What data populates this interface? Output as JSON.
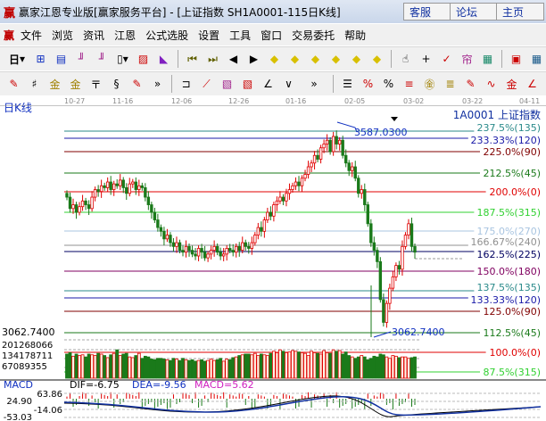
{
  "window": {
    "title": "赢家江恩专业版[赢家服务平台] - [上证指数  SH1A0001-115日K线]",
    "logo": "赢",
    "buttons": [
      "客服",
      "论坛",
      "主页"
    ]
  },
  "menu": {
    "logo": "赢",
    "items": [
      "文件",
      "浏览",
      "资讯",
      "江恩",
      "公式选股",
      "设置",
      "工具",
      "窗口",
      "交易委托",
      "帮助"
    ]
  },
  "toolbar1": {
    "period": "日",
    "icons": [
      "period-dropdown",
      "chart-type",
      "info",
      "weekly",
      "monthly",
      "candle-dropdown",
      "rights",
      "color-bars",
      "first",
      "last",
      "prev",
      "next",
      "move-left",
      "move-right",
      "zoom-in",
      "zoom-out",
      "expand",
      "shrink",
      "hand",
      "crosshair",
      "draw",
      "tools",
      "gann",
      "calendar",
      "calculator"
    ]
  },
  "toolbar2": {
    "icons": [
      "pen",
      "grid",
      "gold1",
      "gold2",
      "lines",
      "spiral",
      "pen2",
      "more",
      "box",
      "fan",
      "square",
      "angle-fan",
      "angle",
      "wave",
      "more",
      "ruler",
      "percent",
      "percent-sign",
      "percent-lines",
      "gold-circle",
      "gold-lines",
      "pen3",
      "gold-wave",
      "gold-box",
      "angle2"
    ]
  },
  "dates": [
    "10-27",
    "11-16",
    "12-06",
    "12-26",
    "01-16",
    "02-05",
    "03-02",
    "03-22",
    "04-11"
  ],
  "chart": {
    "label": "日K线",
    "symbol": "1A0001  上证指数",
    "high_label": "3587.0300",
    "low_label": "3062.7400",
    "left_low": "3062.7400",
    "volume_labels": [
      "201268066",
      "134178711",
      "67089355"
    ],
    "fib_lines": [
      {
        "label": "237.5%(135)",
        "color": "#2a8a8a"
      },
      {
        "label": "233.33%(120)",
        "color": "#1a1aa8"
      },
      {
        "label": "225.0%(90)",
        "color": "#800000"
      },
      {
        "label": "212.5%(45)",
        "color": "#1a7a1a"
      },
      {
        "label": "200.0%(0)",
        "color": "#e00000"
      },
      {
        "label": "187.5%(315)",
        "color": "#30d030"
      },
      {
        "label": "175.0%(270)",
        "color": "#a8c4e0"
      },
      {
        "label": "166.67%(240)",
        "color": "#909090"
      },
      {
        "label": "162.5%(225)",
        "color": "#000060"
      },
      {
        "label": "150.0%(180)",
        "color": "#800060"
      },
      {
        "label": "137.5%(135)",
        "color": "#2a8a8a"
      },
      {
        "label": "133.33%(120)",
        "color": "#1a1aa8"
      },
      {
        "label": "125.0%(90)",
        "color": "#800000"
      },
      {
        "label": "112.5%(45)",
        "color": "#1a7a1a"
      },
      {
        "label": "100.0%(0)",
        "color": "#e00000"
      },
      {
        "label": "87.5%(315)",
        "color": "#30d030"
      }
    ],
    "closes": [
      3420,
      3390,
      3400,
      3380,
      3395,
      3410,
      3400,
      3390,
      3420,
      3440,
      3435,
      3450,
      3445,
      3460,
      3440,
      3455,
      3450,
      3465,
      3445,
      3430,
      3455,
      3460,
      3440,
      3450,
      3445,
      3420,
      3400,
      3380,
      3360,
      3340,
      3330,
      3310,
      3320,
      3300,
      3290,
      3300,
      3280,
      3275,
      3290,
      3280,
      3270,
      3265,
      3285,
      3275,
      3260,
      3270,
      3280,
      3290,
      3275,
      3265,
      3270,
      3285,
      3280,
      3275,
      3290,
      3280,
      3300,
      3290,
      3285,
      3300,
      3320,
      3340,
      3330,
      3360,
      3380,
      3370,
      3400,
      3410,
      3420,
      3410,
      3430,
      3440,
      3450,
      3460,
      3450,
      3470,
      3480,
      3500,
      3510,
      3530,
      3520,
      3550,
      3560,
      3570,
      3540,
      3580,
      3560,
      3570,
      3530,
      3510,
      3490,
      3500,
      3470,
      3430,
      3440,
      3400,
      3350,
      3300,
      3280,
      3250,
      3150,
      3090,
      3140,
      3180,
      3210,
      3240,
      3230,
      3290,
      3320,
      3350,
      3290,
      3275
    ],
    "volumes_m": [
      170,
      180,
      155,
      170,
      160,
      165,
      150,
      170,
      165,
      160,
      175,
      170,
      160,
      145,
      165,
      175,
      200,
      160,
      170,
      175,
      150,
      145,
      160,
      175,
      140,
      155,
      150,
      135,
      130,
      140,
      140,
      135,
      130,
      125,
      140,
      135,
      125,
      140,
      130,
      125,
      130,
      120,
      125,
      130,
      120,
      125,
      135,
      125,
      130,
      140,
      120,
      135,
      130,
      145,
      150,
      160,
      165,
      170,
      170,
      165,
      175,
      160,
      170,
      165,
      160,
      175,
      190,
      180,
      200,
      190,
      180,
      185,
      195,
      190,
      185,
      180,
      175,
      160,
      190,
      180,
      175,
      170,
      195,
      180,
      175,
      200,
      190,
      195,
      170,
      185,
      160,
      150,
      140,
      150,
      160,
      150,
      130,
      140,
      155,
      150,
      170,
      165,
      150,
      140,
      160,
      155,
      145,
      150,
      150,
      140,
      145,
      150
    ],
    "hist_up": [
      true,
      true,
      false,
      false,
      true,
      true,
      true,
      false,
      true,
      false,
      false,
      true,
      true,
      true,
      true,
      false,
      true,
      false,
      false,
      true,
      true,
      true,
      true,
      true,
      false,
      false,
      false,
      false,
      false,
      false,
      false,
      false,
      false,
      false,
      true,
      false,
      false,
      true,
      true,
      true,
      false,
      true,
      false,
      false,
      true,
      false,
      true,
      true,
      true,
      true,
      true,
      false,
      true,
      true,
      true,
      true,
      true,
      false,
      true,
      false,
      false,
      true,
      true,
      true,
      false,
      false,
      true,
      true,
      false,
      true,
      true,
      true,
      true,
      false,
      false,
      true,
      true,
      true,
      false,
      true,
      true,
      true,
      true,
      false,
      true,
      false,
      true,
      false,
      false,
      false,
      true,
      false,
      false,
      false,
      false,
      false,
      true,
      false,
      true,
      true,
      true,
      true,
      false,
      false,
      false,
      true,
      false,
      false,
      false,
      true,
      false,
      false
    ]
  },
  "macd": {
    "title": "MACD",
    "dif": "DIF=-6.75",
    "dea": "DEA=-9.56",
    "macd": "MACD=5.62",
    "ticks": [
      "63.86",
      "24.90",
      "-14.06",
      "-53.03"
    ]
  }
}
